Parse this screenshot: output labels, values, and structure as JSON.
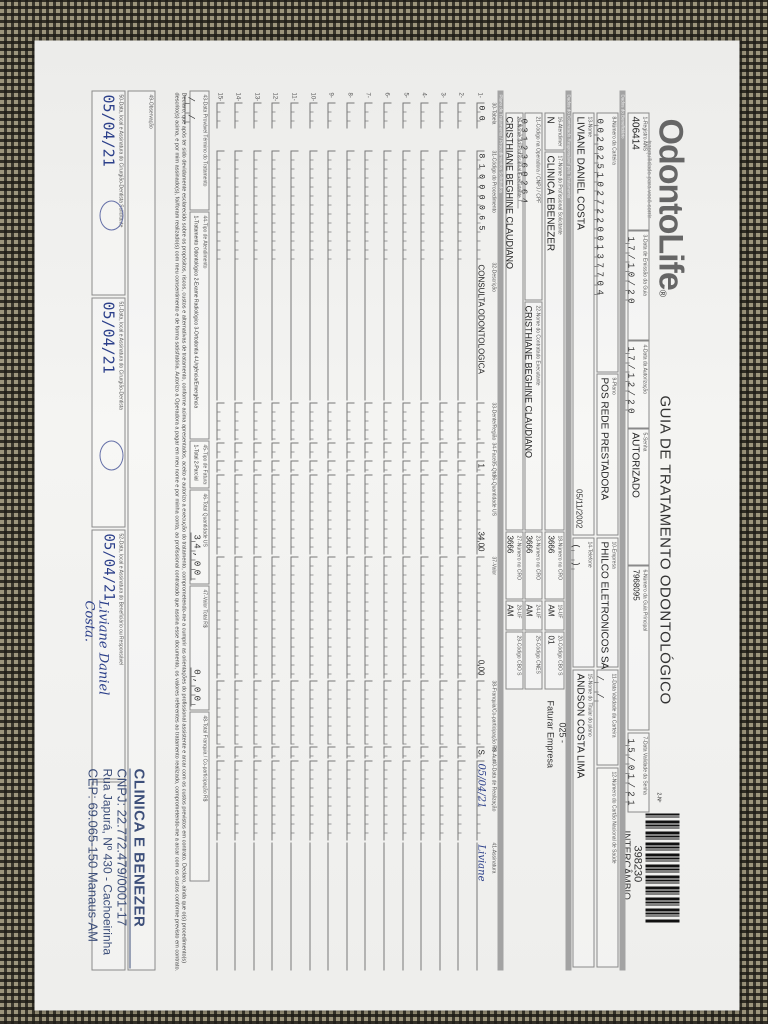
{
  "header": {
    "logo": "OdontoLife",
    "logo_tagline": "tranquilidade para você sorrir",
    "title": "GUIA DE TRATAMENTO ODONTOLÓGICO",
    "guide_no_label": "2-Nº",
    "guide_number": "398230",
    "guide_type": "INTERCÂMBIO"
  },
  "row1": {
    "ans": {
      "label": "1-Registro ANS",
      "value": "406414"
    },
    "emissao": {
      "label": "3-Data de Emissão da Guia",
      "value": "17/10/20"
    },
    "autorizacao": {
      "label": "4-Data da Autorização",
      "value": "17/12/20"
    },
    "senha": {
      "label": "5-Senha",
      "value": "AUTORIZADO"
    },
    "guia_principal": {
      "label": "6-Número da Guia Principal",
      "value": "7968095"
    },
    "validade_senha": {
      "label": "7-Data Validade da Senha",
      "value": "15/01/21"
    }
  },
  "bands": {
    "beneficiario": "Dados do Beneficiário",
    "contratado": "Dados do Contratado Responsável pelo Tratamento",
    "plano": "Plano de Tratamento / Procedimentos Solicitados"
  },
  "row2": {
    "carteira": {
      "label": "8-Número da Carteira",
      "value": "00202510272200137704"
    },
    "plano": {
      "label": "9-Plano",
      "value": "POS REDE PRESTADORA"
    },
    "empresa": {
      "label": "10-Empresa",
      "value": "PHILCO ELETRONICOS SA"
    },
    "validade_carteira": {
      "label": "11-Data Validade da Carteira",
      "value": "  /  /  "
    },
    "cns": {
      "label": "12-Número do Cartão Nacional de Saúde",
      "value": ""
    }
  },
  "row3": {
    "nome": {
      "label": "13-Nome",
      "value": "LIVIANE DANIEL COSTA"
    },
    "nascimento": "05/11/2002",
    "telefone": {
      "label": "14-Telefone",
      "value": "(  )"
    },
    "titular": {
      "label": "15-Nome do Titular do plano",
      "value": "ANDSON COSTA LIMA"
    }
  },
  "row4": {
    "rn": {
      "label": "16-Atendimento a RN",
      "value": "N"
    },
    "solicitante": {
      "label": "17-Nome do Profissional Solicitante",
      "value": "CLINICA EBENEZER"
    },
    "cro": {
      "label": "18-Número no CRO",
      "value": "3666"
    },
    "uf": {
      "label": "19-UF",
      "value": "AM"
    },
    "cbo": {
      "label": "20-Código CBO S",
      "value": "01"
    }
  },
  "billing_note": {
    "code": "025 -",
    "text": "Faturar Empresa"
  },
  "row5": {
    "codigo_operadora": {
      "label": "21-Código na Operadora / CNPJ / CPF",
      "value": "0312360264"
    },
    "contratado": {
      "label": "22-Nome do Contratado Executante",
      "value": "CRISTHIANE BEGHINE CLAUDIANO"
    },
    "cro": {
      "label": "23-Número no CRO",
      "value": "3666"
    },
    "uf": {
      "label": "24-UF",
      "value": "AM"
    },
    "cnes": {
      "label": "25-Código CNES",
      "value": ""
    }
  },
  "row6": {
    "executante": {
      "label": "26-Nome do Profissional Executante",
      "value": "CRISTHIANE BEGHINE CLAUDIANO"
    },
    "cro": {
      "label": "27-Número no CRO",
      "value": "3666"
    },
    "uf": {
      "label": "28-UF",
      "value": "AM"
    },
    "cbo": {
      "label": "29-Código CBO S",
      "value": ""
    }
  },
  "table": {
    "columns": [
      "30-Tabela",
      "31-Código do Procedimento",
      "32-Descrição",
      "33-Dente/Região",
      "34-Face",
      "35-Qtd",
      "36-Quantidade US",
      "37-Valor",
      "38-Franquia/Co-participação R$",
      "39-Aut",
      "40-Data de Realização",
      "41-Assinatura"
    ],
    "rows": [
      {
        "n": "1-",
        "tabela": "00",
        "codigo": "81000065",
        "descricao": "CONSULTA ODONTOLOGICA",
        "dente": "",
        "face": "",
        "qtd": "1",
        "us": "34,00",
        "valor": "0,00",
        "franquia": "",
        "aut": "S",
        "data": "05/04/21",
        "assinatura": "Liviane"
      },
      {
        "n": "2-"
      },
      {
        "n": "3-"
      },
      {
        "n": "4-"
      },
      {
        "n": "5-"
      },
      {
        "n": "6-"
      },
      {
        "n": "7-"
      },
      {
        "n": "8-"
      },
      {
        "n": "9-"
      },
      {
        "n": "10-"
      },
      {
        "n": "11-"
      },
      {
        "n": "12-"
      },
      {
        "n": "13-"
      },
      {
        "n": "14-"
      },
      {
        "n": "15-"
      }
    ]
  },
  "totals": {
    "termino": {
      "label": "43-Data Provável Término do Tratamento",
      "value": "  /  /  "
    },
    "tipo_atendimento": {
      "label": "44-Tipo de Atendimento",
      "options": "1-Tratamento Odontológico  2-Exame Radiológico  3-Ortodontia  4-Urgência/Emergência"
    },
    "tipo_faturamento": {
      "label": "45-Tipo de Faturamento",
      "options": "1-Total  2-Parcial"
    },
    "total_us": {
      "label": "46-Total Quantidade US",
      "value": "34,00"
    },
    "valor_total": {
      "label": "47-Valor Total R$",
      "value": "0,00"
    },
    "total_franquia": {
      "label": "48-Total Franquia / Co-participação R$",
      "value": ""
    }
  },
  "declaration": "Declaro, que após ter sido devidamente esclarecido sobre os propósitos, riscos, custos e alternativas de tratamento, conforme acima apresentados, aceito e autorizo a execução do tratamento, comprometendo-me a cumprir as orientações do profissional assistente e arcar com os custos previstos em contrato. Declaro, ainda que o(s) procedimento(s) descrito(s) acima, e por mim assinado(s), foi/foram realizado(s) com meu consentimento e de forma satisfatória. Autorizo a Operadora a pagar em meu nome e por minha conta, ao profissional contratado que assina esse documento, os valores referentes ao tratamento realizado, comprometendo-me a arcar com os custos conforme previsto em contrato.",
  "observacao": {
    "label": "49-Observação",
    "value": ""
  },
  "signatures": {
    "s50": {
      "label": "50-Data, local e Assinatura do Cirurgião-Dentista Solicitante",
      "date": "05/04/21"
    },
    "s51": {
      "label": "51-Data, local e Assinatura do Cirurgião-Dentista",
      "date": "05/04/21"
    },
    "s52": {
      "label": "52-Data, local e Assinatura do Beneficiário ou Responsável",
      "date": "05/04/21",
      "handwriting": "Liviane Daniel Costa."
    }
  },
  "stamp": {
    "name": "CLINICA E BENEZER",
    "cnpj": "CNPJ: 22.772.479/0001-17",
    "address": "Rua Japurá, Nº 430 - Cachoeirinha",
    "cep": "CEP: 69.065-150  Manaus-AM"
  },
  "colors": {
    "band": "#a3a3a3",
    "ink_blue": "#2b3f8a",
    "stamp": "#3d4f7a"
  }
}
